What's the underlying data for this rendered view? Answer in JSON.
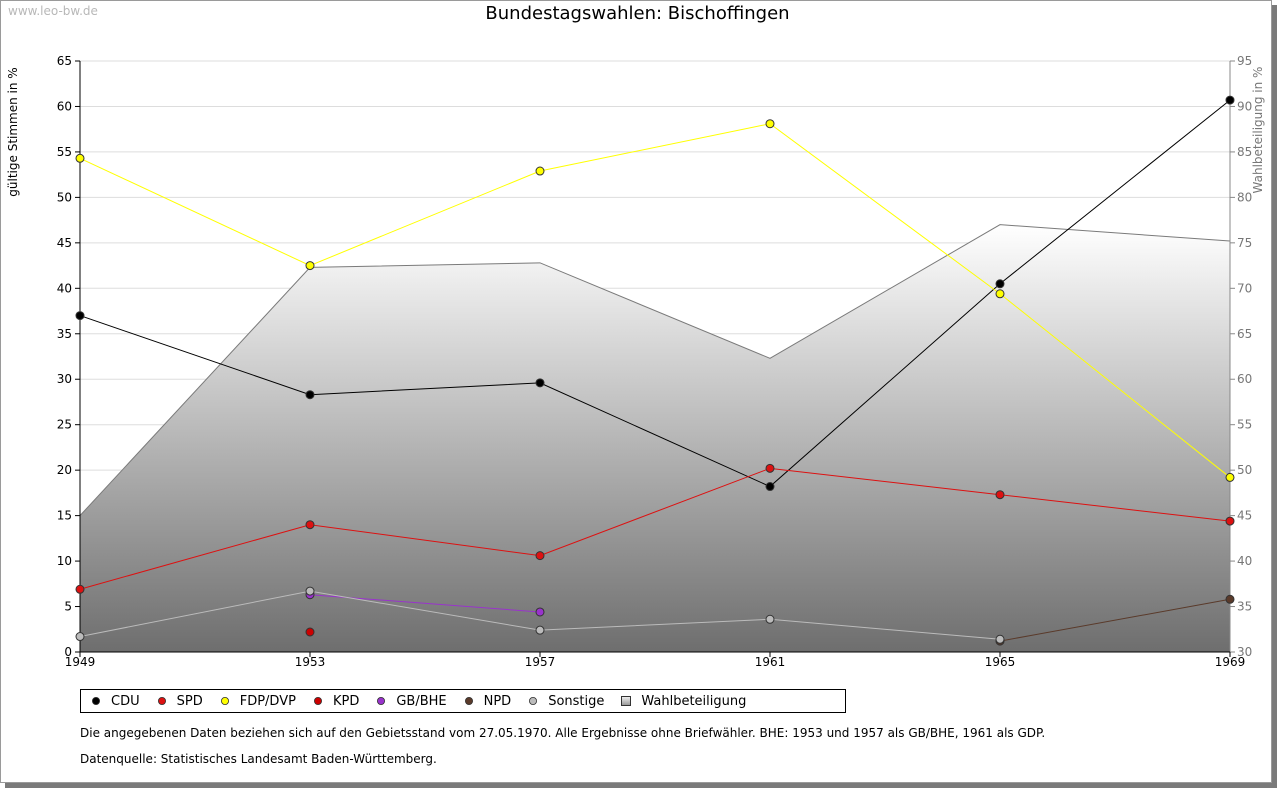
{
  "watermark": "www.leo-bw.de",
  "chart_data": {
    "type": "line",
    "title": "Bundestagswahlen: Bischoffingen",
    "x": [
      "1949",
      "1953",
      "1957",
      "1961",
      "1965",
      "1969"
    ],
    "ylabel": "gültige Stimmen in %",
    "ylim": [
      0,
      65
    ],
    "yticks": [
      "0",
      "5",
      "10",
      "15",
      "20",
      "25",
      "30",
      "35",
      "40",
      "45",
      "50",
      "55",
      "60",
      "65"
    ],
    "y2label": "Wahlbeteiligung in %",
    "y2lim": [
      30,
      95
    ],
    "y2ticks": [
      "30",
      "35",
      "40",
      "45",
      "50",
      "55",
      "60",
      "65",
      "70",
      "75",
      "80",
      "85",
      "90",
      "95"
    ],
    "grid": true,
    "area": {
      "name": "Wahlbeteiligung",
      "axis": "right",
      "values": [
        45.0,
        72.3,
        72.8,
        62.3,
        77.0,
        75.2
      ],
      "color": "#7a7a7a"
    },
    "series": [
      {
        "name": "CDU",
        "color": "#000000",
        "values": [
          37.0,
          28.3,
          29.6,
          18.2,
          40.5,
          60.7
        ]
      },
      {
        "name": "SPD",
        "color": "#dd1111",
        "values": [
          6.9,
          14.0,
          10.6,
          20.2,
          17.3,
          14.4
        ]
      },
      {
        "name": "FDP/DVP",
        "color": "#ffff00",
        "values": [
          54.3,
          42.5,
          52.9,
          58.1,
          39.4,
          19.2
        ]
      },
      {
        "name": "KPD",
        "color": "#cc0000",
        "values": [
          null,
          2.2,
          null,
          null,
          null,
          null
        ]
      },
      {
        "name": "GB/BHE",
        "color": "#9933cc",
        "values": [
          null,
          6.3,
          4.4,
          null,
          null,
          null
        ]
      },
      {
        "name": "NPD",
        "color": "#5a3a2a",
        "values": [
          null,
          null,
          null,
          null,
          1.2,
          5.8
        ]
      },
      {
        "name": "Sonstige",
        "color": "#bbbbbb",
        "values": [
          1.7,
          6.7,
          2.4,
          3.6,
          1.4,
          null
        ]
      }
    ]
  },
  "legend": [
    {
      "label": "CDU",
      "color": "#000000",
      "shape": "dot"
    },
    {
      "label": "SPD",
      "color": "#dd1111",
      "shape": "dot"
    },
    {
      "label": "FDP/DVP",
      "color": "#ffff00",
      "shape": "dot"
    },
    {
      "label": "KPD",
      "color": "#cc0000",
      "shape": "dot"
    },
    {
      "label": "GB/BHE",
      "color": "#9933cc",
      "shape": "dot"
    },
    {
      "label": "NPD",
      "color": "#5a3a2a",
      "shape": "dot"
    },
    {
      "label": "Sonstige",
      "color": "#bbbbbb",
      "shape": "dot"
    },
    {
      "label": "Wahlbeteiligung",
      "color": "#aaaaaa",
      "shape": "square"
    }
  ],
  "notes": {
    "line1": "Die angegebenen Daten beziehen sich auf den Gebietsstand vom 27.05.1970. Alle Ergebnisse ohne Briefwähler. BHE: 1953 und 1957 als GB/BHE, 1961 als GDP.",
    "line2": "Datenquelle: Statistisches Landesamt Baden-Württemberg."
  }
}
